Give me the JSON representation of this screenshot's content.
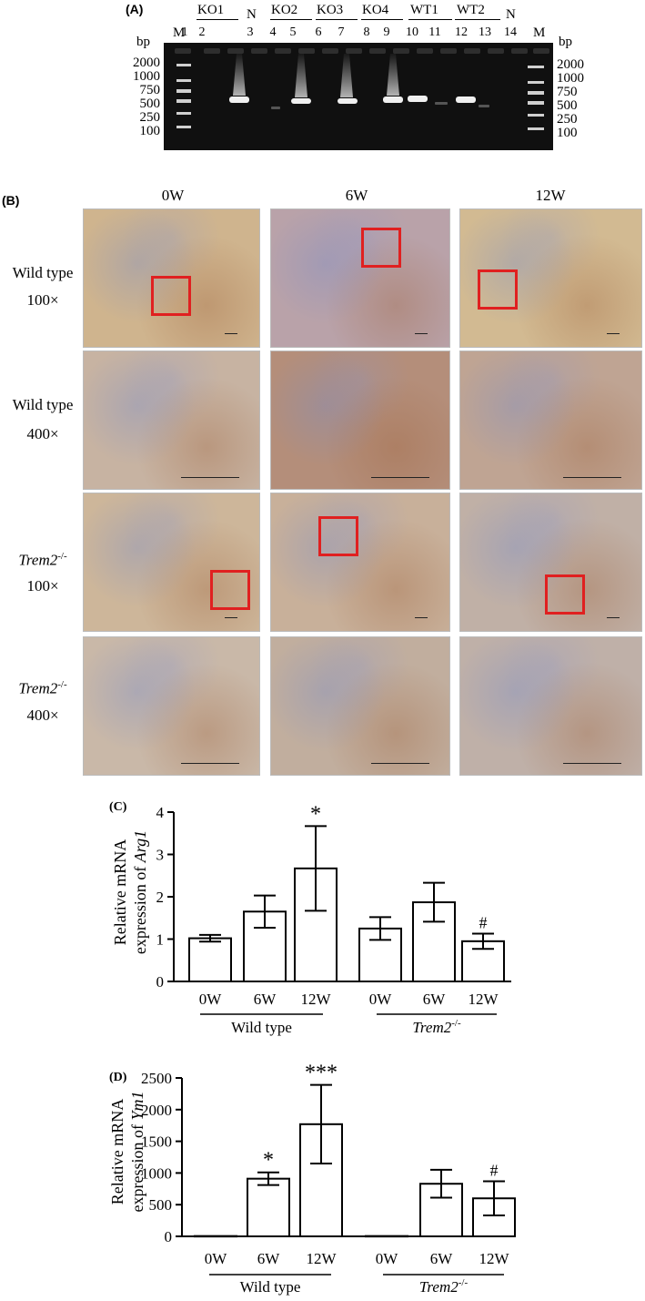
{
  "panelA": {
    "label": "(A)",
    "groups": [
      "KO1",
      "N",
      "KO2",
      "KO3",
      "KO4",
      "WT1",
      "WT2",
      "N"
    ],
    "marker": "M",
    "lanes": [
      "1",
      "2",
      "3",
      "4",
      "5",
      "6",
      "7",
      "8",
      "9",
      "10",
      "11",
      "12",
      "13",
      "14"
    ],
    "bp_label": "bp",
    "ladder": [
      "2000",
      "1000",
      "750",
      "500",
      "250",
      "100"
    ]
  },
  "panelB": {
    "label": "(B)",
    "columns": [
      "0W",
      "6W",
      "12W"
    ],
    "rows": [
      {
        "name": "Wild type",
        "mag": "100×"
      },
      {
        "name": "Wild type",
        "mag": "400×"
      },
      {
        "name": "Trem2",
        "sup": "-/-",
        "mag": "100×"
      },
      {
        "name": "Trem2",
        "sup": "-/-",
        "mag": "400×"
      }
    ]
  },
  "chart_data": [
    {
      "panel": "(C)",
      "type": "bar",
      "ylabel_line1": "Relative mRNA",
      "ylabel_line2": "expression of",
      "ylabel_gene": "Arg1",
      "ylim": [
        0,
        4
      ],
      "yticks": [
        "0",
        "1",
        "2",
        "3",
        "4"
      ],
      "categories": [
        "0W",
        "6W",
        "12W",
        "0W",
        "6W",
        "12W"
      ],
      "groups": [
        {
          "name": "Wild type"
        },
        {
          "name": "Trem2",
          "sup": "-/-"
        }
      ],
      "values": [
        1.02,
        1.65,
        2.67,
        1.25,
        1.87,
        0.95
      ],
      "errors": [
        0.08,
        0.38,
        1.0,
        0.27,
        0.46,
        0.18
      ],
      "annotations": [
        "",
        "",
        "*",
        "",
        "",
        "#"
      ]
    },
    {
      "panel": "(D)",
      "type": "bar",
      "ylabel_line1": "Relative mRNA",
      "ylabel_line2": "expression of",
      "ylabel_gene": "Ym1",
      "ylim": [
        0,
        2500
      ],
      "yticks": [
        "0",
        "500",
        "1000",
        "1500",
        "2000",
        "2500"
      ],
      "categories": [
        "0W",
        "6W",
        "12W",
        "0W",
        "6W",
        "12W"
      ],
      "groups": [
        {
          "name": "Wild type"
        },
        {
          "name": "Trem2",
          "sup": "-/-"
        }
      ],
      "values": [
        5,
        910,
        1770,
        5,
        830,
        600
      ],
      "errors": [
        0,
        100,
        620,
        0,
        220,
        270
      ],
      "annotations": [
        "",
        "*",
        "***",
        "",
        "",
        "#"
      ]
    }
  ]
}
